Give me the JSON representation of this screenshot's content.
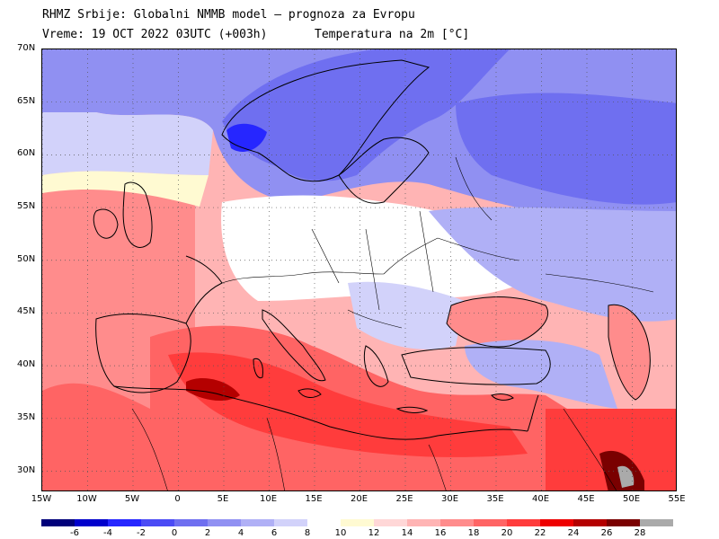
{
  "header": {
    "line1": "RHMZ Srbije: Globalni NMMB model — prognoza za Evropu",
    "line2": "Vreme: 19 OCT 2022 03UTC (+003h)",
    "line3": "Temperatura na 2m [°C]"
  },
  "map": {
    "projection": "lat-lon",
    "lon_range": [
      -15,
      55
    ],
    "lat_range": [
      28,
      70
    ],
    "grid": "dotted",
    "lat_labels": [
      "70N",
      "65N",
      "60N",
      "55N",
      "50N",
      "45N",
      "40N",
      "35N",
      "30N"
    ],
    "lat_values": [
      70,
      65,
      60,
      55,
      50,
      45,
      40,
      35,
      30
    ],
    "lon_labels": [
      "15W",
      "10W",
      "5W",
      "0",
      "5E",
      "10E",
      "15E",
      "20E",
      "25E",
      "30E",
      "35E",
      "40E",
      "45E",
      "50E",
      "55E"
    ],
    "lon_values": [
      -15,
      -10,
      -5,
      0,
      5,
      10,
      15,
      20,
      25,
      30,
      35,
      40,
      45,
      50,
      55
    ]
  },
  "legend": {
    "colors": [
      "#00007a",
      "#0000cc",
      "#2626ff",
      "#4b4bf5",
      "#6f6ff0",
      "#9090f2",
      "#b0b0f6",
      "#d2d2fa",
      "#ffffff",
      "#fffad2",
      "#ffd7d7",
      "#ffb4b4",
      "#ff8c8c",
      "#ff6464",
      "#ff3c3c",
      "#ee0000",
      "#b40000",
      "#7a0000",
      "#aaaaaa"
    ],
    "labels": [
      "-6",
      "-4",
      "-2",
      "0",
      "2",
      "4",
      "6",
      "8",
      "10",
      "12",
      "14",
      "16",
      "18",
      "20",
      "22",
      "24",
      "26",
      "28"
    ],
    "label_values": [
      -6,
      -4,
      -2,
      0,
      2,
      4,
      6,
      8,
      10,
      12,
      14,
      16,
      18,
      20,
      22,
      24,
      26,
      28
    ]
  }
}
